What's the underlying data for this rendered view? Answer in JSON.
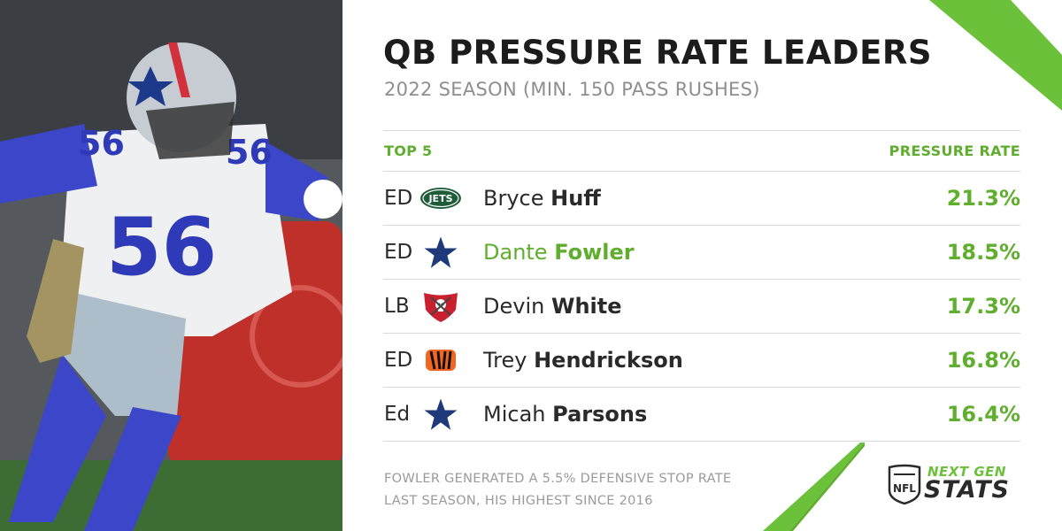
{
  "title": "QB PRESSURE RATE LEADERS",
  "subtitle": "2022 SEASON (MIN. 150 PASS RUSHES)",
  "table": {
    "left_header": "TOP 5",
    "right_header": "PRESSURE RATE",
    "rows": [
      {
        "pos": "ED",
        "first": "Bryce",
        "last": "Huff",
        "rate": "21.3%",
        "logo": "jets-logo-icon",
        "highlight": false
      },
      {
        "pos": "ED",
        "first": "Dante",
        "last": "Fowler",
        "rate": "18.5%",
        "logo": "cowboys-star-icon",
        "highlight": true
      },
      {
        "pos": "LB",
        "first": "Devin",
        "last": "White",
        "rate": "17.3%",
        "logo": "buccaneers-flag-icon",
        "highlight": false
      },
      {
        "pos": "ED",
        "first": "Trey",
        "last": "Hendrickson",
        "rate": "16.8%",
        "logo": "bengals-logo-icon",
        "highlight": false
      },
      {
        "pos": "Ed",
        "first": "Micah",
        "last": "Parsons",
        "rate": "16.4%",
        "logo": "cowboys-star-icon",
        "highlight": false
      }
    ]
  },
  "footnote": {
    "line1": "FOWLER GENERATED A 5.5% DEFENSIVE STOP RATE",
    "line2": "LAST SEASON, HIS HIGHEST SINCE 2016"
  },
  "brand": {
    "line1": "NEXT GEN",
    "line2": "STATS"
  },
  "colors": {
    "accent": "#5fae2e",
    "title": "#1c1c1c",
    "muted": "#8e8e8e"
  }
}
